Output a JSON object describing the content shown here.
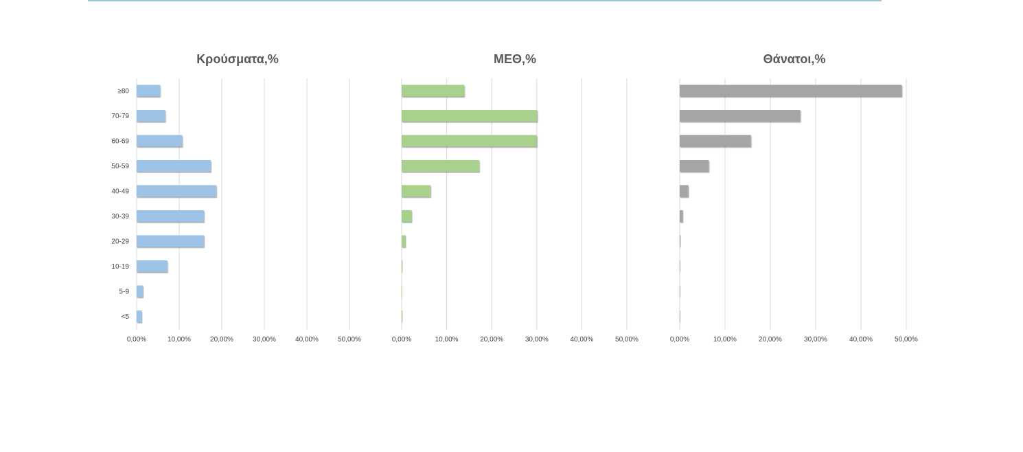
{
  "chart_data": [
    {
      "type": "bar",
      "orientation": "horizontal",
      "title": "Κρούσματα,%",
      "categories": [
        "≥80",
        "70-79",
        "60-69",
        "50-59",
        "40-49",
        "30-39",
        "20-29",
        "10-19",
        "5-9",
        "<5"
      ],
      "values": [
        5.5,
        6.7,
        10.7,
        17.4,
        18.7,
        15.8,
        15.8,
        7.2,
        1.5,
        1.2
      ],
      "xlim": [
        0,
        50
      ],
      "xticks": [
        "0,00%",
        "10,00%",
        "20,00%",
        "30,00%",
        "40,00%",
        "50,00%"
      ],
      "color": "#9dc3e6",
      "grid": true
    },
    {
      "type": "bar",
      "orientation": "horizontal",
      "title": "ΜΕΘ,%",
      "categories": [
        "≥80",
        "70-79",
        "60-69",
        "50-59",
        "40-49",
        "30-39",
        "20-29",
        "10-19",
        "5-9",
        "<5"
      ],
      "values": [
        13.9,
        30.1,
        30.0,
        17.2,
        6.4,
        2.2,
        0.9,
        0.2,
        0.0,
        0.2
      ],
      "xlim": [
        0,
        50
      ],
      "xticks": [
        "0,00%",
        "10,00%",
        "20,00%",
        "30,00%",
        "40,00%",
        "50,00%"
      ],
      "color": "#a9d18e",
      "grid": true
    },
    {
      "type": "bar",
      "orientation": "horizontal",
      "title": "Θάνατοι,%",
      "categories": [
        "≥80",
        "70-79",
        "60-69",
        "50-59",
        "40-49",
        "30-39",
        "20-29",
        "10-19",
        "5-9",
        "<5"
      ],
      "values": [
        49.0,
        26.6,
        15.7,
        6.4,
        1.9,
        0.7,
        0.2,
        0.0,
        0.0,
        0.0
      ],
      "xlim": [
        0,
        50
      ],
      "xticks": [
        "0,00%",
        "10,00%",
        "20,00%",
        "30,00%",
        "40,00%",
        "50,00%"
      ],
      "color": "#a5a5a5",
      "grid": true
    }
  ]
}
